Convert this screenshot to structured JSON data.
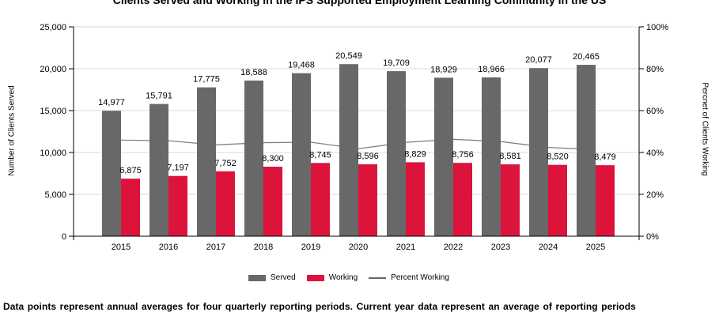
{
  "chart_data": {
    "type": "bar",
    "title": "Clients Served and Working in the IPS Supported Employment Learning Community in the US",
    "categories": [
      "2015",
      "2016",
      "2017",
      "2018",
      "2019",
      "2020",
      "2021",
      "2022",
      "2023",
      "2024",
      "2025"
    ],
    "series": [
      {
        "name": "Served",
        "type": "bar",
        "axis": "left",
        "color": "#686868",
        "values": [
          14977,
          15791,
          17775,
          18588,
          19468,
          20549,
          19709,
          18929,
          18966,
          20077,
          20465
        ],
        "labels": [
          "14,977",
          "15,791",
          "17,775",
          "18,588",
          "19,468",
          "20,549",
          "19,709",
          "18,929",
          "18,966",
          "20,077",
          "20,465"
        ]
      },
      {
        "name": "Working",
        "type": "bar",
        "axis": "left",
        "color": "#dc143c",
        "values": [
          6875,
          7197,
          7752,
          8300,
          8745,
          8596,
          8829,
          8756,
          8581,
          8520,
          8479
        ],
        "labels": [
          "6,875",
          "7,197",
          "7,752",
          "8,300",
          "8,745",
          "8,596",
          "8,829",
          "8,756",
          "8,581",
          "8,520",
          "8,479"
        ]
      },
      {
        "name": "Percent Working",
        "type": "line",
        "axis": "right",
        "color": "#808080",
        "values": [
          45.9,
          45.6,
          43.6,
          44.7,
          44.9,
          41.8,
          44.8,
          46.3,
          45.2,
          42.4,
          41.4
        ]
      }
    ],
    "ylabel": "Number of Clients Served",
    "ylabel_right": "Percnet of Clients Working",
    "ylim": [
      0,
      25000
    ],
    "ylim_right": [
      0,
      100
    ],
    "yticks": [
      0,
      5000,
      10000,
      15000,
      20000,
      25000
    ],
    "ytick_labels": [
      "0",
      "5,000",
      "10,000",
      "15,000",
      "20,000",
      "25,000"
    ],
    "yticks_right": [
      0,
      20,
      40,
      60,
      80,
      100
    ],
    "ytick_labels_right": [
      "0%",
      "20%",
      "40%",
      "60%",
      "80%",
      "100%"
    ],
    "grid": true,
    "legend": "bottom-center"
  },
  "legend": {
    "served": "Served",
    "working": "Working",
    "percent": "Percent Working"
  },
  "footer": {
    "note": "Data points represent annual averages for four quarterly reporting periods. Current year data represent an average of reporting periods"
  }
}
